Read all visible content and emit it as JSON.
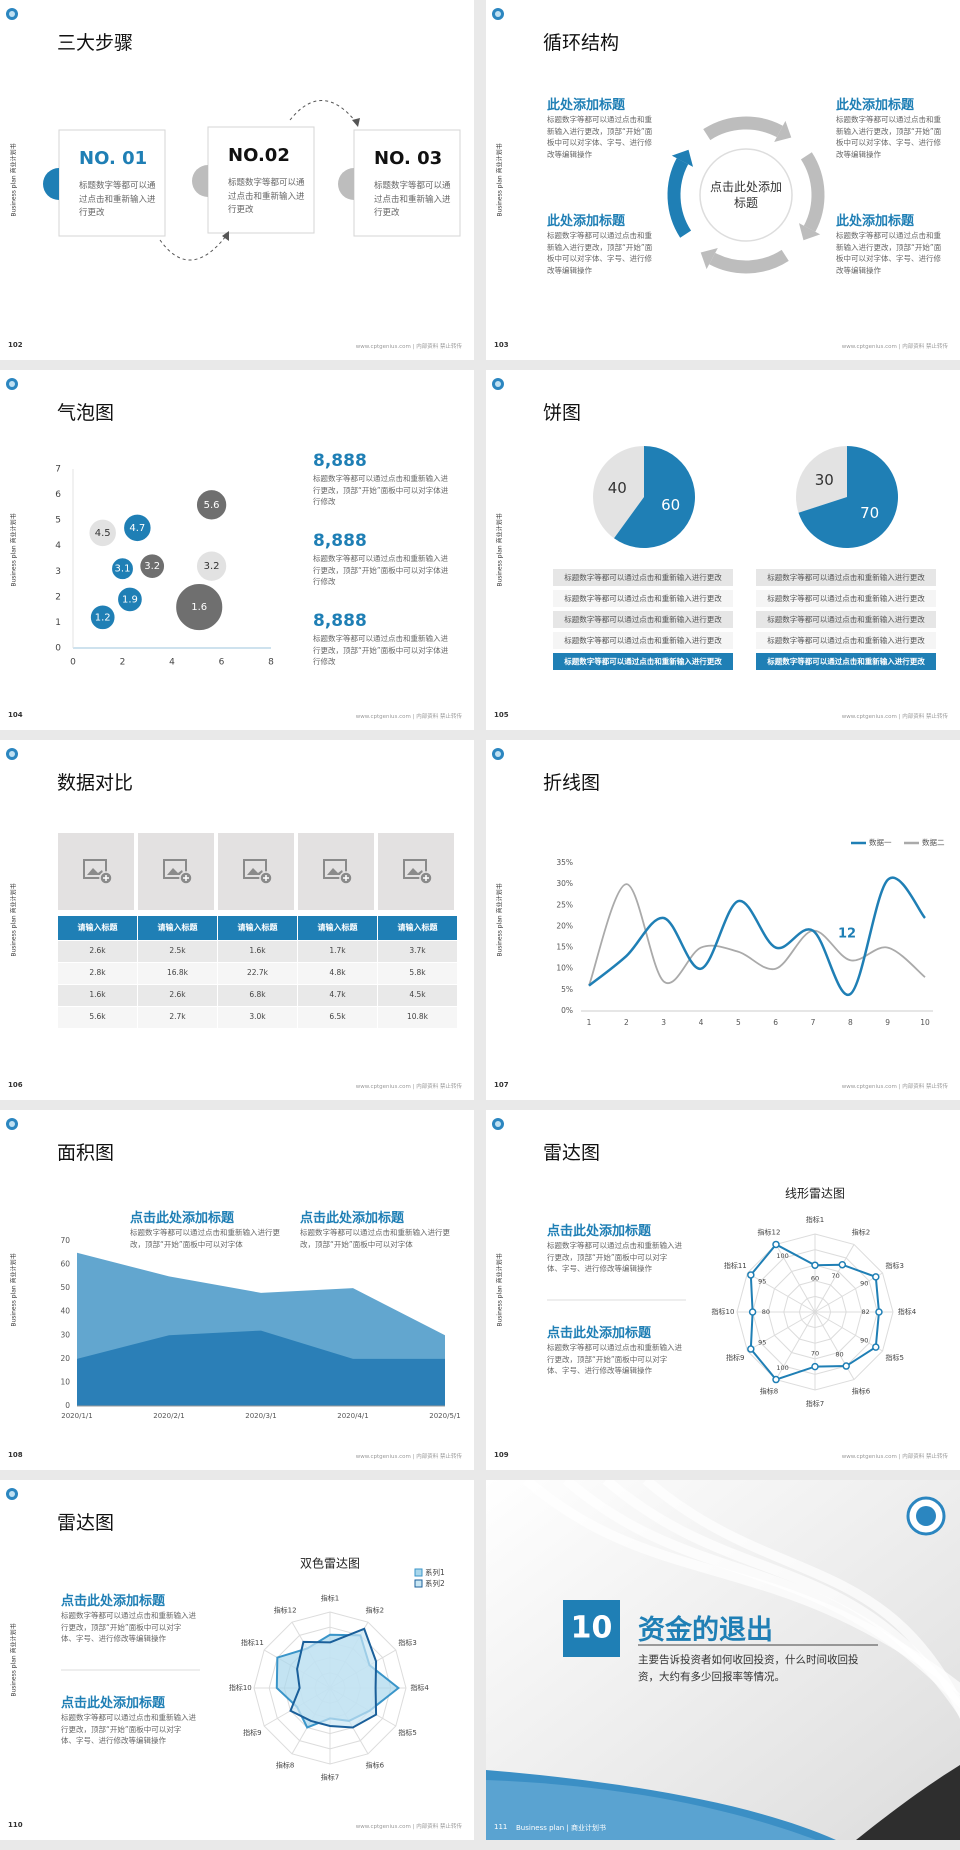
{
  "common": {
    "side_text": "Business plan 商业计划书",
    "footer": "www.cptgenius.com | 内部资料 禁止转传"
  },
  "slides": [
    {
      "page": "102",
      "title": "三大步骤",
      "steps": [
        {
          "label": "NO. 01",
          "text": "标题数字等都可以通过点击和重新输入进行更改"
        },
        {
          "label": "NO.02",
          "text": "标题数字等都可以通过点击和重新输入进行更改"
        },
        {
          "label": "NO. 03",
          "text": "标题数字等都可以通过点击和重新输入进行更改"
        }
      ]
    },
    {
      "page": "103",
      "title": "循环结构",
      "center": "点击此处添加标题",
      "blocks": [
        {
          "title": "此处添加标题",
          "text": "标题数字等都可以通过点击和重新输入进行更改，顶部“开始”面板中可以对字体、字号、进行修改等编辑操作"
        },
        {
          "title": "此处添加标题",
          "text": "标题数字等都可以通过点击和重新输入进行更改，顶部“开始”面板中可以对字体、字号、进行修改等编辑操作"
        },
        {
          "title": "此处添加标题",
          "text": "标题数字等都可以通过点击和重新输入进行更改，顶部“开始”面板中可以对字体、字号、进行修改等编辑操作"
        },
        {
          "title": "此处添加标题",
          "text": "标题数字等都可以通过点击和重新输入进行更改，顶部“开始”面板中可以对字体、字号、进行修改等编辑操作"
        }
      ]
    },
    {
      "page": "104",
      "title": "气泡图",
      "chart": {
        "type": "bubble",
        "xlim": [
          0,
          8
        ],
        "xticks": [
          0,
          2,
          4,
          6,
          8
        ],
        "ylim": [
          0,
          7
        ],
        "yticks": [
          0,
          1,
          2,
          3,
          4,
          5,
          6,
          7
        ],
        "series": [
          {
            "color": "#1f7fb5",
            "label_color": "#ffffff",
            "x": [
              1.2,
              2.3,
              2,
              2.6
            ],
            "values": [
              1.2,
              1.9,
              3.1,
              4.7
            ],
            "sizes": [
              0.9,
              0.9,
              0.8,
              1
            ]
          },
          {
            "color": "#6f6f6f",
            "label_color": "#ffffff",
            "x": [
              3.2,
              5.6,
              5.1
            ],
            "values": [
              3.2,
              5.6,
              1.6
            ],
            "sizes": [
              0.9,
              1.1,
              1.7
            ]
          },
          {
            "color": "#e2e2e2",
            "label_color": "#333333",
            "x": [
              1.2,
              5.6
            ],
            "values": [
              4.5,
              3.2
            ],
            "sizes": [
              1,
              1.1
            ]
          }
        ]
      },
      "stats": [
        {
          "value": "8,888",
          "text": "标题数字等都可以通过点击和重新输入进行更改，顶部“开始”面板中可以对字体进行修改"
        },
        {
          "value": "8,888",
          "text": "标题数字等都可以通过点击和重新输入进行更改，顶部“开始”面板中可以对字体进行修改"
        },
        {
          "value": "8,888",
          "text": "标题数字等都可以通过点击和重新输入进行更改，顶部“开始”面板中可以对字体进行修改"
        }
      ]
    },
    {
      "page": "105",
      "title": "饼图",
      "charts": [
        {
          "type": "pie",
          "values": [
            40,
            60
          ],
          "colors": [
            "#e3e3e3",
            "#1f7fb5"
          ]
        },
        {
          "type": "pie",
          "values": [
            30,
            70
          ],
          "colors": [
            "#e3e3e3",
            "#1f7fb5"
          ]
        }
      ],
      "lists": [
        [
          "标题数字等都可以通过点击和重新输入进行更改",
          "标题数字等都可以通过点击和重新输入进行更改",
          "标题数字等都可以通过点击和重新输入进行更改",
          "标题数字等都可以通过点击和重新输入进行更改",
          "标题数字等都可以通过点击和重新输入进行更改"
        ],
        [
          "标题数字等都可以通过点击和重新输入进行更改",
          "标题数字等都可以通过点击和重新输入进行更改",
          "标题数字等都可以通过点击和重新输入进行更改",
          "标题数字等都可以通过点击和重新输入进行更改",
          "标题数字等都可以通过点击和重新输入进行更改"
        ]
      ]
    },
    {
      "page": "106",
      "title": "数据对比",
      "table": {
        "header": [
          "请输入标题",
          "请输入标题",
          "请输入标题",
          "请输入标题",
          "请输入标题"
        ],
        "rows": [
          [
            "2.6k",
            "2.5k",
            "1.6k",
            "1.7k",
            "3.7k"
          ],
          [
            "2.8k",
            "16.8k",
            "22.7k",
            "4.8k",
            "5.8k"
          ],
          [
            "1.6k",
            "2.6k",
            "6.8k",
            "4.7k",
            "4.5k"
          ],
          [
            "5.6k",
            "2.7k",
            "3.0k",
            "6.5k",
            "10.8k"
          ]
        ]
      }
    },
    {
      "page": "107",
      "title": "折线图",
      "chart": {
        "type": "line",
        "x": [
          1,
          2,
          3,
          4,
          5,
          6,
          7,
          8,
          9,
          10
        ],
        "xlim": [
          1,
          10
        ],
        "xticks": [
          1,
          2,
          3,
          4,
          5,
          6,
          7,
          8,
          9,
          10
        ],
        "ylim": [
          0,
          35
        ],
        "yticks": [
          {
            "value": 0,
            "label": "0%"
          },
          {
            "value": 5,
            "label": "5%"
          },
          {
            "value": 10,
            "label": "10%"
          },
          {
            "value": 15,
            "label": "15%"
          },
          {
            "value": 20,
            "label": "20%"
          },
          {
            "value": 25,
            "label": "25%"
          },
          {
            "value": 30,
            "label": "30%"
          },
          {
            "value": 35,
            "label": "35%"
          }
        ],
        "series": [
          {
            "name": "数据一",
            "color": "#1f7fb5",
            "values": [
              6,
              13,
              22,
              10,
              26,
              15,
              19,
              4,
              31,
              22
            ]
          },
          {
            "name": "数据二",
            "color": "#aaaaaa",
            "values": [
              6,
              30,
              7,
              15,
              14,
              10,
              19,
              12,
              15,
              8
            ]
          }
        ],
        "annotation": "12"
      }
    },
    {
      "page": "108",
      "title": "面积图",
      "texts": [
        {
          "title": "点击此处添加标题",
          "text": "标题数字等都可以通过点击和重新输入进行更改，顶部“开始”面板中可以对字体"
        },
        {
          "title": "点击此处添加标题",
          "text": "标题数字等都可以通过点击和重新输入进行更改，顶部“开始”面板中可以对字体"
        }
      ],
      "chart": {
        "type": "area",
        "categories": [
          "2020/1/1",
          "2020/2/1",
          "2020/3/1",
          "2020/4/1",
          "2020/5/1"
        ],
        "ylim": [
          0,
          70
        ],
        "yticks": [
          0,
          10,
          20,
          30,
          40,
          50,
          60,
          70
        ],
        "series": [
          {
            "color": "#62a6cf",
            "values": [
              65,
              55,
              48,
              50,
              30
            ]
          },
          {
            "color": "#2b7fb7",
            "values": [
              20,
              30,
              32,
              20,
              20
            ]
          }
        ]
      }
    },
    {
      "page": "109",
      "title": "雷达图",
      "texts": [
        {
          "title": "点击此处添加标题",
          "text": "标题数字等都可以通过点击和重新输入进行更改，顶部“开始”面板中可以对字体、字号、进行修改等编辑操作"
        },
        {
          "title": "点击此处添加标题",
          "text": "标题数字等都可以通过点击和重新输入进行更改，顶部“开始”面板中可以对字体、字号、进行修改等编辑操作"
        }
      ],
      "chart": {
        "type": "radar",
        "title": "线形雷达图",
        "data_labels": true,
        "rlim": [
          0,
          100
        ],
        "categories": [
          "指标1",
          "指标2",
          "指标3",
          "指标4",
          "指标5",
          "指标6",
          "指标7",
          "指标8",
          "指标9",
          "指标10",
          "指标11",
          "指标12"
        ],
        "series": [
          {
            "color": "#1f7fb5",
            "fill": "none",
            "values": [
              60,
              70,
              90,
              82,
              90,
              80,
              70,
              100,
              95,
              80,
              95,
              100
            ]
          }
        ]
      }
    },
    {
      "page": "110",
      "title": "雷达图",
      "texts": [
        {
          "title": "点击此处添加标题",
          "text": "标题数字等都可以通过点击和重新输入进行更改，顶部“开始”面板中可以对字体、字号、进行修改等编辑操作"
        },
        {
          "title": "点击此处添加标题",
          "text": "标题数字等都可以通过点击和重新输入进行更改，顶部“开始”面板中可以对字体、字号、进行修改等编辑操作"
        }
      ],
      "chart": {
        "type": "radar",
        "title": "双色雷达图",
        "data_labels": false,
        "rlim": [
          0,
          100
        ],
        "categories": [
          "指标1",
          "指标2",
          "指标3",
          "指标4",
          "指标5",
          "指标6",
          "指标7",
          "指标8",
          "指标9",
          "指标10",
          "指标11",
          "指标12"
        ],
        "series": [
          {
            "name": "系列1",
            "color": "#3a95c9",
            "fill": "#a9d7ec",
            "values": [
              70,
              80,
              60,
              90,
              60,
              50,
              40,
              60,
              50,
              70,
              80,
              60
            ]
          },
          {
            "name": "系列2",
            "color": "#1a5f9a",
            "fill": "#c9e6f3",
            "values": [
              60,
              90,
              70,
              60,
              70,
              60,
              50,
              50,
              60,
              40,
              50,
              70
            ]
          }
        ]
      }
    },
    {
      "page": "111",
      "number": "10",
      "title": "资金的退出",
      "text": "主要告诉投资者如何收回投资，什么时间收回投资，大约有多少回报率等情况。",
      "footer": "Business plan | 商业计划书"
    }
  ]
}
